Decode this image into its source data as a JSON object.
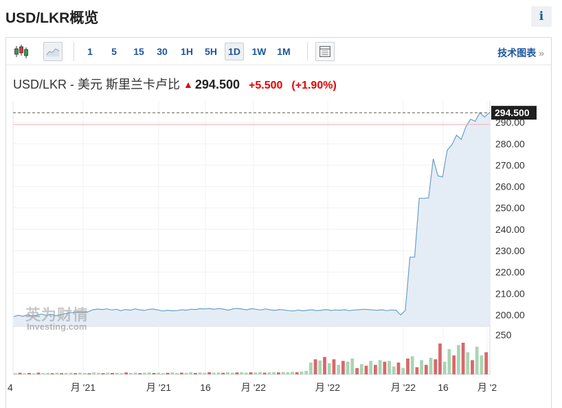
{
  "page": {
    "title": "USD/LKR概览",
    "info_label": "i"
  },
  "toolbar": {
    "periods": [
      {
        "label": "1",
        "active": false
      },
      {
        "label": "5",
        "active": false
      },
      {
        "label": "15",
        "active": false
      },
      {
        "label": "30",
        "active": false
      },
      {
        "label": "1H",
        "active": false
      },
      {
        "label": "5H",
        "active": false
      },
      {
        "label": "1D",
        "active": true
      },
      {
        "label": "1W",
        "active": false
      },
      {
        "label": "1M",
        "active": false
      }
    ],
    "tech_chart_label": "技术图表",
    "tech_chart_arrow": "»"
  },
  "quote": {
    "name": "USD/LKR - 美元 斯里兰卡卢比",
    "price": "294.500",
    "change": "+5.500",
    "change_pct": "(+1.90%)"
  },
  "watermark": {
    "cn": "英为财情",
    "en": "Investing.com"
  },
  "colors": {
    "line": "#6a9ec6",
    "fill": "#e4edf6",
    "up_volume": "#a9d5b2",
    "down_volume": "#d9686a",
    "reference_line": "#f2b8bd",
    "last_price_bg": "#1f1f1f",
    "accent": "#1a56a0"
  },
  "chart_data": {
    "type": "line",
    "ylim": [
      195,
      300
    ],
    "y_ticks": [
      "200.00",
      "210.00",
      "220.00",
      "230.00",
      "240.00",
      "250.00",
      "260.00",
      "270.00",
      "280.00",
      "290.00"
    ],
    "last_price_label": "294.500",
    "reference_price": 289.0,
    "x_tick_labels": [
      "4",
      "月 '21",
      "月 '21",
      "16",
      "月 '22",
      "月 '22",
      "月 '22",
      "16",
      "月 '2"
    ],
    "price_series": [
      199.2,
      199.8,
      199.3,
      200.1,
      199.5,
      199.9,
      200.4,
      199.7,
      200.3,
      199.6,
      200.0,
      200.6,
      201.0,
      201.2,
      201.4,
      201.3,
      201.5,
      202.4,
      202.7,
      202.5,
      202.8,
      202.3,
      202.6,
      202.0,
      202.5,
      202.2,
      202.8,
      202.4,
      202.1,
      202.6,
      202.7,
      202.3,
      201.8,
      202.2,
      201.9,
      202.0,
      202.4,
      202.2,
      202.6,
      202.5,
      202.9,
      202.8,
      203.0,
      202.6,
      203.0,
      202.7,
      202.2,
      202.8,
      203.0,
      202.7,
      202.4,
      202.9,
      202.6,
      202.3,
      202.8,
      202.4,
      202.1,
      202.5,
      202.3,
      202.0,
      201.8,
      202.3,
      201.9,
      202.2,
      202.4,
      202.0,
      202.2,
      202.5,
      202.1,
      202.3,
      202.2,
      202.4,
      202.0,
      202.3,
      202.4,
      202.6,
      202.5,
      202.3,
      202.2,
      202.4,
      202.0,
      202.3,
      202.2,
      200.0,
      202.0,
      227.0,
      227.0,
      254.5,
      254.5,
      254.7,
      273.0,
      265.0,
      264.5,
      277.0,
      279.5,
      284.0,
      282.0,
      288.0,
      291.5,
      290.5,
      294.5,
      292.5,
      294.5
    ],
    "volume_max": 300,
    "volume_tick": "250",
    "volume_series": [
      {
        "v": 8,
        "up": true
      },
      {
        "v": 10,
        "up": false
      },
      {
        "v": 7,
        "up": true
      },
      {
        "v": 9,
        "up": false
      },
      {
        "v": 6,
        "up": true
      },
      {
        "v": 11,
        "up": false
      },
      {
        "v": 8,
        "up": true
      },
      {
        "v": 9,
        "up": true
      },
      {
        "v": 7,
        "up": false
      },
      {
        "v": 10,
        "up": true
      },
      {
        "v": 8,
        "up": false
      },
      {
        "v": 9,
        "up": true
      },
      {
        "v": 10,
        "up": true
      },
      {
        "v": 8,
        "up": false
      },
      {
        "v": 11,
        "up": true
      },
      {
        "v": 9,
        "up": true
      },
      {
        "v": 7,
        "up": false
      },
      {
        "v": 12,
        "up": true
      },
      {
        "v": 10,
        "up": true
      },
      {
        "v": 8,
        "up": false
      },
      {
        "v": 11,
        "up": true
      },
      {
        "v": 9,
        "up": false
      },
      {
        "v": 10,
        "up": true
      },
      {
        "v": 8,
        "up": true
      },
      {
        "v": 12,
        "up": false
      },
      {
        "v": 9,
        "up": true
      },
      {
        "v": 11,
        "up": true
      },
      {
        "v": 8,
        "up": false
      },
      {
        "v": 10,
        "up": true
      },
      {
        "v": 12,
        "up": true
      },
      {
        "v": 9,
        "up": false
      },
      {
        "v": 11,
        "up": true
      },
      {
        "v": 8,
        "up": true
      },
      {
        "v": 10,
        "up": false
      },
      {
        "v": 12,
        "up": true
      },
      {
        "v": 9,
        "up": true
      },
      {
        "v": 11,
        "up": false
      },
      {
        "v": 10,
        "up": true
      },
      {
        "v": 13,
        "up": true
      },
      {
        "v": 9,
        "up": false
      },
      {
        "v": 12,
        "up": true
      },
      {
        "v": 10,
        "up": true
      },
      {
        "v": 14,
        "up": false
      },
      {
        "v": 11,
        "up": true
      },
      {
        "v": 12,
        "up": true
      },
      {
        "v": 10,
        "up": false
      },
      {
        "v": 13,
        "up": true
      },
      {
        "v": 11,
        "up": true
      },
      {
        "v": 12,
        "up": false
      },
      {
        "v": 14,
        "up": true
      },
      {
        "v": 11,
        "up": true
      },
      {
        "v": 13,
        "up": false
      },
      {
        "v": 12,
        "up": true
      },
      {
        "v": 15,
        "up": true
      },
      {
        "v": 11,
        "up": false
      },
      {
        "v": 13,
        "up": true
      },
      {
        "v": 14,
        "up": true
      },
      {
        "v": 12,
        "up": false
      },
      {
        "v": 15,
        "up": true
      },
      {
        "v": 13,
        "up": true
      },
      {
        "v": 16,
        "up": true
      },
      {
        "v": 14,
        "up": false
      },
      {
        "v": 18,
        "up": true
      },
      {
        "v": 22,
        "up": true
      },
      {
        "v": 75,
        "up": true
      },
      {
        "v": 95,
        "up": false
      },
      {
        "v": 88,
        "up": true
      },
      {
        "v": 110,
        "up": false
      },
      {
        "v": 70,
        "up": true
      },
      {
        "v": 95,
        "up": false
      },
      {
        "v": 60,
        "up": true
      },
      {
        "v": 85,
        "up": false
      },
      {
        "v": 80,
        "up": true
      },
      {
        "v": 100,
        "up": true
      },
      {
        "v": 40,
        "up": false
      },
      {
        "v": 65,
        "up": true
      },
      {
        "v": 55,
        "up": false
      },
      {
        "v": 85,
        "up": true
      },
      {
        "v": 60,
        "up": false
      },
      {
        "v": 90,
        "up": true
      },
      {
        "v": 80,
        "up": false
      },
      {
        "v": 85,
        "up": true
      },
      {
        "v": 50,
        "up": true
      },
      {
        "v": 75,
        "up": false
      },
      {
        "v": 40,
        "up": true
      },
      {
        "v": 100,
        "up": false
      },
      {
        "v": 115,
        "up": true
      },
      {
        "v": 45,
        "up": false
      },
      {
        "v": 90,
        "up": true
      },
      {
        "v": 60,
        "up": false
      },
      {
        "v": 105,
        "up": true
      },
      {
        "v": 95,
        "up": false
      },
      {
        "v": 195,
        "up": false
      },
      {
        "v": 80,
        "up": true
      },
      {
        "v": 160,
        "up": true
      },
      {
        "v": 120,
        "up": false
      },
      {
        "v": 185,
        "up": true
      },
      {
        "v": 200,
        "up": false
      },
      {
        "v": 140,
        "up": true
      },
      {
        "v": 90,
        "up": false
      },
      {
        "v": 175,
        "up": true
      },
      {
        "v": 120,
        "up": true
      },
      {
        "v": 140,
        "up": false
      }
    ]
  }
}
